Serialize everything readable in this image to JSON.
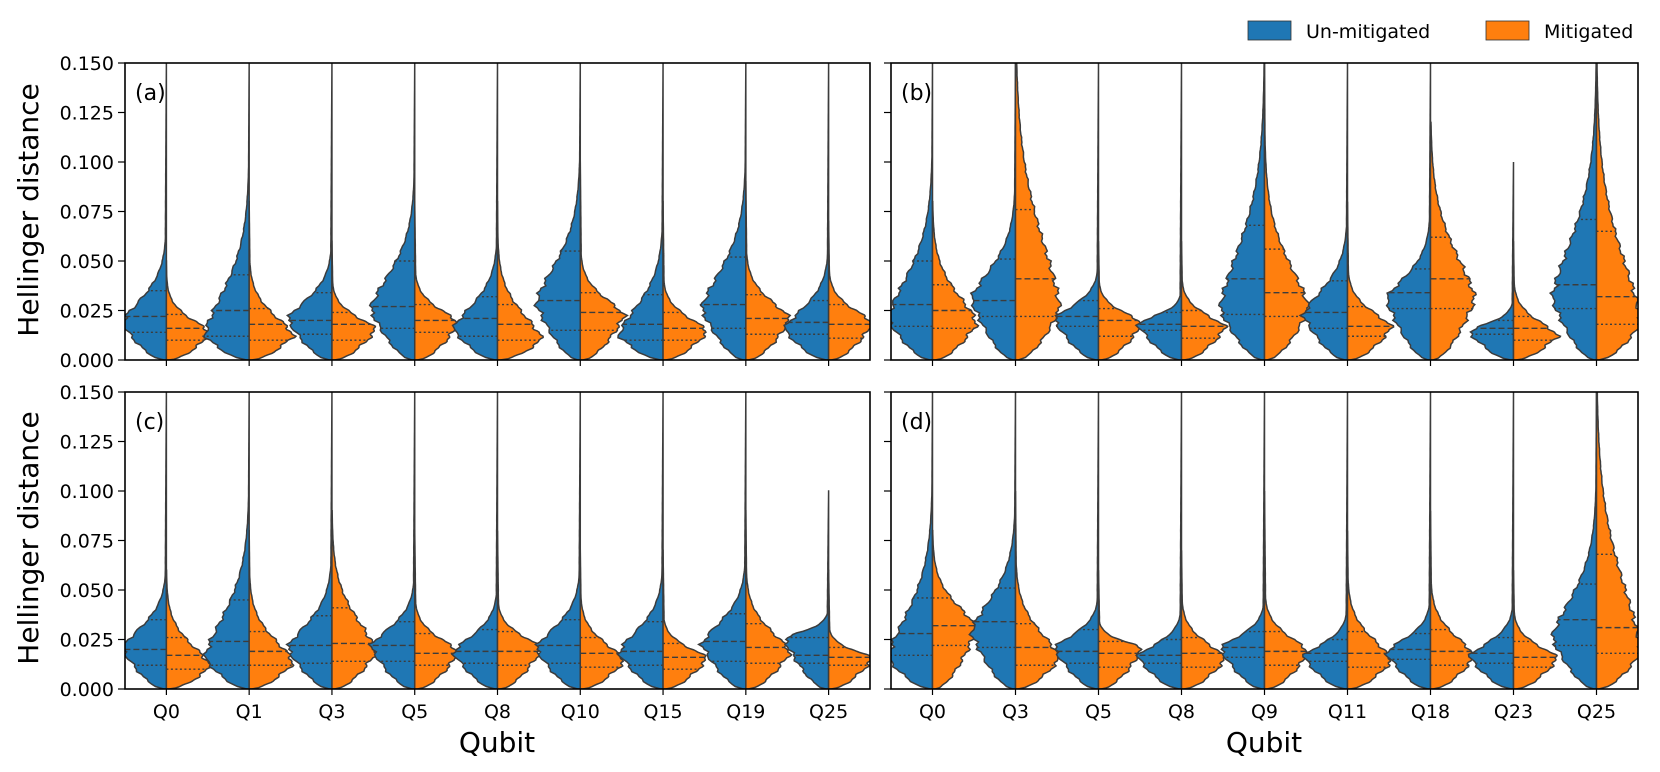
{
  "chart_data": {
    "type": "violin",
    "split_violin": true,
    "inner": "quartile",
    "legend": {
      "placement": "top-right",
      "entries": [
        {
          "label": "Un-mitigated",
          "color": "#1f77b4"
        },
        {
          "label": "Mitigated",
          "color": "#ff7f0e"
        }
      ]
    },
    "y_axis": {
      "label": "Hellinger distance",
      "ylim": [
        0,
        0.15
      ],
      "ticks": [
        "0.000",
        "0.025",
        "0.050",
        "0.075",
        "0.100",
        "0.125",
        "0.150"
      ]
    },
    "x_axis_label": "Qubit",
    "panels": [
      {
        "label": "(a)",
        "categories": [
          "Q0",
          "Q1",
          "Q3",
          "Q5",
          "Q8",
          "Q10",
          "Q15",
          "Q19",
          "Q25"
        ],
        "series": [
          {
            "name": "Un-mitigated",
            "quartiles": [
              [
                0.014,
                0.022,
                0.035
              ],
              [
                0.012,
                0.025,
                0.043
              ],
              [
                0.013,
                0.02,
                0.034
              ],
              [
                0.016,
                0.027,
                0.05
              ],
              [
                0.012,
                0.021,
                0.032
              ],
              [
                0.015,
                0.03,
                0.055
              ],
              [
                0.01,
                0.018,
                0.033
              ],
              [
                0.016,
                0.028,
                0.052
              ],
              [
                0.013,
                0.019,
                0.03
              ]
            ],
            "peak": [
              0.018,
              0.012,
              0.02,
              0.025,
              0.015,
              0.028,
              0.012,
              0.025,
              0.015
            ],
            "max": [
              0.15,
              0.15,
              0.15,
              0.15,
              0.15,
              0.15,
              0.15,
              0.15,
              0.15
            ]
          },
          {
            "name": "Mitigated",
            "quartiles": [
              [
                0.01,
                0.016,
                0.023
              ],
              [
                0.01,
                0.018,
                0.026
              ],
              [
                0.01,
                0.018,
                0.024
              ],
              [
                0.014,
                0.02,
                0.028
              ],
              [
                0.01,
                0.018,
                0.028
              ],
              [
                0.015,
                0.024,
                0.034
              ],
              [
                0.01,
                0.016,
                0.024
              ],
              [
                0.013,
                0.021,
                0.033
              ],
              [
                0.011,
                0.018,
                0.028
              ]
            ],
            "peak": [
              0.013,
              0.012,
              0.015,
              0.018,
              0.01,
              0.022,
              0.014,
              0.02,
              0.018
            ],
            "max": [
              0.05,
              0.08,
              0.06,
              0.08,
              0.08,
              0.1,
              0.08,
              0.09,
              0.07
            ]
          }
        ]
      },
      {
        "label": "(b)",
        "categories": [
          "Q0",
          "Q3",
          "Q5",
          "Q8",
          "Q9",
          "Q11",
          "Q18",
          "Q23",
          "Q25"
        ],
        "series": [
          {
            "name": "Un-mitigated",
            "quartiles": [
              [
                0.017,
                0.028,
                0.05
              ],
              [
                0.022,
                0.03,
                0.051
              ],
              [
                0.017,
                0.022,
                0.03
              ],
              [
                0.015,
                0.018,
                0.024
              ],
              [
                0.023,
                0.041,
                0.068
              ],
              [
                0.016,
                0.024,
                0.04
              ],
              [
                0.026,
                0.034,
                0.046
              ],
              [
                0.013,
                0.016,
                0.02
              ],
              [
                0.026,
                0.038,
                0.071
              ]
            ],
            "peak": [
              0.02,
              0.03,
              0.02,
              0.018,
              0.025,
              0.022,
              0.03,
              0.014,
              0.03
            ],
            "max": [
              0.15,
              0.15,
              0.15,
              0.15,
              0.15,
              0.15,
              0.15,
              0.1,
              0.15
            ]
          },
          {
            "name": "Mitigated",
            "quartiles": [
              [
                0.016,
                0.025,
                0.038
              ],
              [
                0.022,
                0.041,
                0.076
              ],
              [
                0.012,
                0.02,
                0.026
              ],
              [
                0.011,
                0.017,
                0.025
              ],
              [
                0.022,
                0.034,
                0.056
              ],
              [
                0.012,
                0.017,
                0.027
              ],
              [
                0.026,
                0.041,
                0.062
              ],
              [
                0.01,
                0.016,
                0.022
              ],
              [
                0.018,
                0.032,
                0.065
              ]
            ],
            "peak": [
              0.018,
              0.025,
              0.018,
              0.016,
              0.025,
              0.016,
              0.03,
              0.012,
              0.018
            ],
            "max": [
              0.08,
              0.15,
              0.06,
              0.06,
              0.15,
              0.08,
              0.12,
              0.06,
              0.15
            ]
          }
        ]
      },
      {
        "label": "(c)",
        "categories": [
          "Q0",
          "Q1",
          "Q3",
          "Q5",
          "Q8",
          "Q10",
          "Q15",
          "Q19",
          "Q25"
        ],
        "series": [
          {
            "name": "Un-mitigated",
            "quartiles": [
              [
                0.012,
                0.02,
                0.035
              ],
              [
                0.012,
                0.024,
                0.045
              ],
              [
                0.013,
                0.022,
                0.037
              ],
              [
                0.014,
                0.022,
                0.034
              ],
              [
                0.013,
                0.019,
                0.03
              ],
              [
                0.013,
                0.022,
                0.035
              ],
              [
                0.012,
                0.019,
                0.034
              ],
              [
                0.014,
                0.024,
                0.038
              ],
              [
                0.013,
                0.017,
                0.026
              ]
            ],
            "peak": [
              0.02,
              0.015,
              0.02,
              0.021,
              0.018,
              0.02,
              0.018,
              0.022,
              0.025
            ],
            "max": [
              0.15,
              0.15,
              0.15,
              0.15,
              0.15,
              0.15,
              0.15,
              0.15,
              0.1
            ]
          },
          {
            "name": "Mitigated",
            "quartiles": [
              [
                0.01,
                0.017,
                0.026
              ],
              [
                0.012,
                0.019,
                0.029
              ],
              [
                0.014,
                0.023,
                0.041
              ],
              [
                0.012,
                0.018,
                0.028
              ],
              [
                0.012,
                0.019,
                0.029
              ],
              [
                0.011,
                0.018,
                0.026
              ],
              [
                0.01,
                0.016,
                0.023
              ],
              [
                0.013,
                0.021,
                0.033
              ],
              [
                0.012,
                0.016,
                0.021
              ]
            ],
            "peak": [
              0.011,
              0.013,
              0.018,
              0.018,
              0.02,
              0.014,
              0.015,
              0.018,
              0.015
            ],
            "max": [
              0.06,
              0.08,
              0.09,
              0.08,
              0.08,
              0.07,
              0.07,
              0.09,
              0.06
            ]
          }
        ]
      },
      {
        "label": "(d)",
        "categories": [
          "Q0",
          "Q3",
          "Q5",
          "Q8",
          "Q9",
          "Q11",
          "Q18",
          "Q23",
          "Q25"
        ],
        "series": [
          {
            "name": "Un-mitigated",
            "quartiles": [
              [
                0.017,
                0.028,
                0.046
              ],
              [
                0.021,
                0.034,
                0.051
              ],
              [
                0.013,
                0.019,
                0.03
              ],
              [
                0.013,
                0.017,
                0.025
              ],
              [
                0.016,
                0.021,
                0.029
              ],
              [
                0.014,
                0.018,
                0.025
              ],
              [
                0.015,
                0.02,
                0.028
              ],
              [
                0.013,
                0.018,
                0.026
              ],
              [
                0.022,
                0.035,
                0.053
              ]
            ],
            "peak": [
              0.015,
              0.028,
              0.02,
              0.016,
              0.02,
              0.016,
              0.018,
              0.016,
              0.025
            ],
            "max": [
              0.15,
              0.15,
              0.15,
              0.15,
              0.15,
              0.15,
              0.15,
              0.15,
              0.15
            ]
          },
          {
            "name": "Mitigated",
            "quartiles": [
              [
                0.022,
                0.032,
                0.046
              ],
              [
                0.012,
                0.021,
                0.033
              ],
              [
                0.011,
                0.018,
                0.024
              ],
              [
                0.011,
                0.018,
                0.026
              ],
              [
                0.012,
                0.019,
                0.029
              ],
              [
                0.011,
                0.018,
                0.029
              ],
              [
                0.012,
                0.019,
                0.03
              ],
              [
                0.011,
                0.016,
                0.024
              ],
              [
                0.018,
                0.031,
                0.068
              ]
            ],
            "peak": [
              0.03,
              0.015,
              0.02,
              0.015,
              0.018,
              0.014,
              0.016,
              0.015,
              0.018
            ],
            "max": [
              0.08,
              0.1,
              0.06,
              0.07,
              0.1,
              0.08,
              0.09,
              0.06,
              0.15
            ]
          }
        ]
      }
    ]
  }
}
